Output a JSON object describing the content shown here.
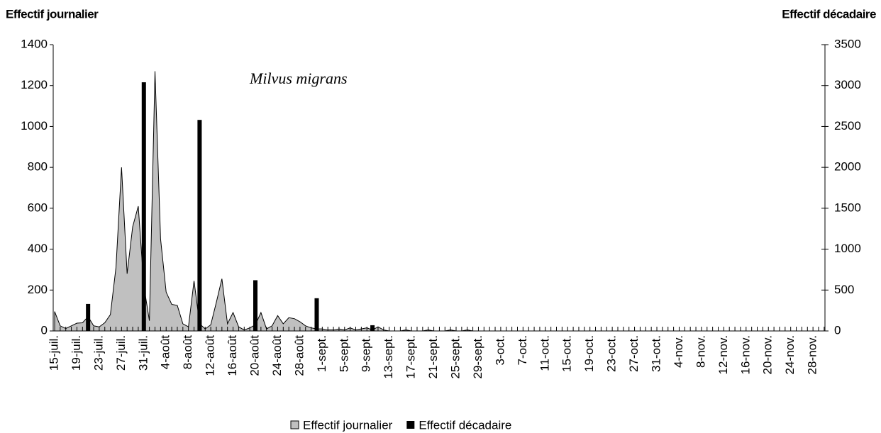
{
  "chart_data": {
    "type": "area-bar",
    "y_label": "Effectif journalier",
    "y2_label": "Effectif décadaire",
    "annotation": "Milvus migrans",
    "categories": [
      "15-juil.",
      null,
      null,
      null,
      "19-juil.",
      null,
      null,
      null,
      "23-juil.",
      null,
      null,
      null,
      "27-juil.",
      null,
      null,
      null,
      "31-juil.",
      null,
      null,
      null,
      "4-août",
      null,
      null,
      null,
      "8-août",
      null,
      null,
      null,
      "12-août",
      null,
      null,
      null,
      "16-août",
      null,
      null,
      null,
      "20-août",
      null,
      null,
      null,
      "24-août",
      null,
      null,
      null,
      "28-août",
      null,
      null,
      null,
      "1-sept.",
      null,
      null,
      null,
      "5-sept.",
      null,
      null,
      null,
      "9-sept.",
      null,
      null,
      null,
      "13-sept.",
      null,
      null,
      null,
      "17-sept.",
      null,
      null,
      null,
      "21-sept.",
      null,
      null,
      null,
      "25-sept.",
      null,
      null,
      null,
      "29-sept.",
      null,
      null,
      null,
      "3-oct.",
      null,
      null,
      null,
      "7-oct.",
      null,
      null,
      null,
      "11-oct.",
      null,
      null,
      null,
      "15-oct.",
      null,
      null,
      null,
      "19-oct.",
      null,
      null,
      null,
      "23-oct.",
      null,
      null,
      null,
      "27-oct.",
      null,
      null,
      null,
      "31-oct.",
      null,
      null,
      null,
      "4-nov.",
      null,
      null,
      null,
      "8-nov.",
      null,
      null,
      null,
      "12-nov.",
      null,
      null,
      null,
      "16-nov.",
      null,
      null,
      null,
      "20-nov.",
      null,
      null,
      null,
      "24-nov.",
      null,
      null,
      null,
      "28-nov.",
      null,
      null
    ],
    "series": [
      {
        "name": "Effectif journalier",
        "color": "#c0c0c0",
        "values": [
          95,
          25,
          12,
          25,
          38,
          40,
          70,
          25,
          20,
          40,
          80,
          310,
          800,
          280,
          510,
          610,
          220,
          50,
          1270,
          450,
          190,
          130,
          125,
          35,
          20,
          245,
          35,
          10,
          30,
          140,
          255,
          35,
          90,
          20,
          5,
          15,
          30,
          90,
          10,
          25,
          75,
          35,
          65,
          60,
          45,
          25,
          15,
          10,
          10,
          5,
          5,
          10,
          5,
          15,
          5,
          10,
          15,
          5,
          20,
          5,
          0,
          0,
          0,
          5,
          0,
          0,
          0,
          5,
          0,
          0,
          0,
          5,
          0,
          0,
          5,
          0,
          0,
          0,
          0,
          0,
          0,
          0,
          0,
          0,
          0,
          0,
          0,
          0,
          0,
          0,
          0,
          0,
          0,
          0,
          0,
          0,
          0,
          0,
          0,
          0,
          0,
          0,
          0,
          0,
          0,
          0,
          0,
          0,
          0,
          0,
          0,
          0,
          0,
          0,
          0,
          0,
          0,
          0,
          0,
          0,
          0,
          0,
          0,
          0,
          0,
          0,
          0,
          0,
          0,
          0,
          0,
          0,
          0,
          0,
          0,
          0,
          0,
          0,
          0
        ]
      },
      {
        "name": "Effectif décadaire",
        "color": "#000000",
        "axis": "y2",
        "values": [
          null,
          null,
          null,
          null,
          null,
          null,
          330,
          null,
          null,
          null,
          null,
          null,
          null,
          null,
          null,
          null,
          3040,
          null,
          null,
          null,
          null,
          null,
          null,
          null,
          null,
          null,
          2580,
          null,
          null,
          null,
          null,
          null,
          null,
          null,
          null,
          null,
          620,
          null,
          null,
          null,
          null,
          null,
          null,
          null,
          null,
          null,
          null,
          400,
          null,
          null,
          null,
          null,
          null,
          null,
          null,
          null,
          null,
          70,
          null,
          null,
          null,
          null,
          null,
          null,
          null,
          null,
          null,
          null,
          null,
          null,
          null,
          null,
          null,
          null,
          null,
          null,
          null,
          null,
          null,
          null,
          null,
          null,
          null,
          null,
          null,
          null,
          null,
          null,
          null,
          null,
          null,
          null,
          null,
          null,
          null,
          null,
          null,
          null,
          null,
          null,
          null,
          null,
          null,
          null,
          null,
          null,
          null,
          null,
          null,
          null,
          null,
          null,
          null,
          null,
          null,
          null,
          null,
          null,
          null,
          null,
          null,
          null,
          null,
          null,
          null,
          null,
          null,
          null,
          null,
          null,
          null,
          null,
          null,
          null,
          null,
          null,
          null,
          null,
          null
        ]
      }
    ],
    "ylim": [
      0,
      1400
    ],
    "yticks": [
      0,
      200,
      400,
      600,
      800,
      1000,
      1200,
      1400
    ],
    "y2lim": [
      0,
      3500
    ],
    "y2ticks": [
      0,
      500,
      1000,
      1500,
      2000,
      2500,
      3000,
      3500
    ]
  }
}
